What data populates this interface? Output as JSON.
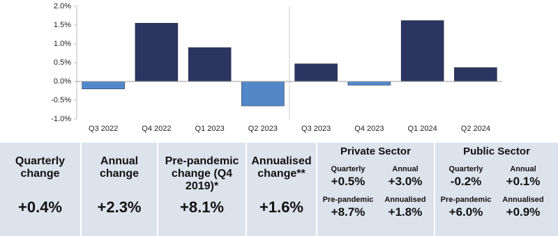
{
  "chart_data": {
    "type": "bar",
    "categories": [
      "Q3 2022",
      "Q4 2022",
      "Q1 2023",
      "Q2 2023",
      "Q3 2023",
      "Q4 2023",
      "Q1 2024",
      "Q2 2024"
    ],
    "values": [
      -0.2,
      1.55,
      0.9,
      -0.65,
      0.47,
      -0.1,
      1.62,
      0.37
    ],
    "colors": [
      "#5288c8",
      "#2b3560",
      "#2b3560",
      "#5288c8",
      "#2b3560",
      "#5288c8",
      "#2b3560",
      "#2b3560"
    ],
    "ylim": [
      -1,
      2
    ],
    "yticks": [
      {
        "value": -1,
        "label": "-1.0%"
      },
      {
        "value": -0.5,
        "label": "-0.5%"
      },
      {
        "value": 0,
        "label": "0.0%"
      },
      {
        "value": 0.5,
        "label": "0.5%"
      },
      {
        "value": 1,
        "label": "1.0%"
      },
      {
        "value": 1.5,
        "label": "1.5%"
      },
      {
        "value": 2,
        "label": "2.0%"
      }
    ],
    "grid": false
  },
  "panel": {
    "boxes": [
      {
        "label": "Quarterly change",
        "value": "+0.4%"
      },
      {
        "label": "Annual change",
        "value": "+2.3%"
      },
      {
        "label": "Pre-pandemic change (Q4 2019)*",
        "value": "+8.1%"
      },
      {
        "label": "Annualised change**",
        "value": "+1.6%"
      }
    ],
    "sectors": [
      {
        "title": "Private Sector",
        "items": [
          {
            "label": "Quarterly",
            "value": "+0.5%"
          },
          {
            "label": "Annual",
            "value": "+3.0%"
          },
          {
            "label": "Pre-pandemic",
            "value": "+8.7%"
          },
          {
            "label": "Annualised",
            "value": "+1.8%"
          }
        ]
      },
      {
        "title": "Public Sector",
        "items": [
          {
            "label": "Quarterly",
            "value": "-0.2%"
          },
          {
            "label": "Annual",
            "value": "+0.1%"
          },
          {
            "label": "Pre-pandemic",
            "value": "+6.0%"
          },
          {
            "label": "Annualised",
            "value": "+0.9%"
          }
        ]
      }
    ]
  }
}
